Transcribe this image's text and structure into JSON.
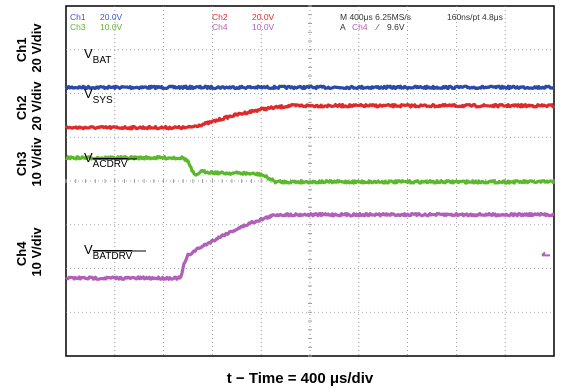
{
  "chart_data": {
    "type": "line",
    "x_axis_label": "t − Time = 400 μs/div",
    "header": {
      "channels": [
        {
          "name": "Ch1",
          "scale": "20.0V",
          "color": "#3a57c9"
        },
        {
          "name": "Ch2",
          "scale": "20.0V",
          "color": "#e02a2a"
        },
        {
          "name": "Ch3",
          "scale": "10.0V",
          "color": "#5ab82a"
        },
        {
          "name": "Ch4",
          "scale": "10.0V",
          "color": "#b060b8"
        }
      ],
      "timebase": "M 400μs  6.25MS/s",
      "record": "160ns/pt 4.8μs",
      "trigger_prefix": "A",
      "trigger_channel": "Ch4",
      "trigger_slope": "∕",
      "trigger_level": "9.6V"
    },
    "divisions": {
      "x": 10,
      "y": 8
    },
    "y_axis_labels": [
      {
        "channel": "Ch1",
        "scale": "20 V/div"
      },
      {
        "channel": "Ch2",
        "scale": "20 V/div"
      },
      {
        "channel": "Ch3",
        "scale": "10 V/div"
      },
      {
        "channel": "Ch4",
        "scale": "10 V/div"
      }
    ],
    "series": [
      {
        "name": "V_BAT",
        "label_main": "V",
        "label_sub": "BAT",
        "overline": false,
        "color": "#2b4aa8",
        "x": [
          0,
          10
        ],
        "y": [
          6.14,
          6.14
        ]
      },
      {
        "name": "V_SYS",
        "label_main": "V",
        "label_sub": "SYS",
        "overline": false,
        "color": "#e02a2a",
        "x": [
          0,
          2.5,
          2.9,
          3.4,
          4.0,
          4.6,
          5.5,
          10
        ],
        "y": [
          5.22,
          5.22,
          5.32,
          5.49,
          5.64,
          5.72,
          5.72,
          5.72
        ]
      },
      {
        "name": "V_ACDRV",
        "label_main": "V",
        "label_sub": "ACDRV",
        "overline": true,
        "color": "#5ab82a",
        "x": [
          0,
          2.4,
          2.5,
          2.58,
          2.66,
          2.75,
          3.2,
          3.6,
          4.0,
          4.3,
          10
        ],
        "y": [
          4.53,
          4.53,
          4.45,
          4.24,
          4.1,
          4.22,
          4.18,
          4.18,
          4.15,
          3.98,
          3.98
        ]
      },
      {
        "name": "V_BATDRV",
        "label_main": "V",
        "label_sub": "BATDRV",
        "overline": true,
        "color": "#b060b8",
        "x": [
          0,
          2.35,
          2.42,
          2.5,
          2.7,
          3.2,
          3.8,
          4.3,
          5.0,
          10
        ],
        "y": [
          1.78,
          1.78,
          2.1,
          2.3,
          2.45,
          2.75,
          3.05,
          3.23,
          3.23,
          3.23
        ]
      }
    ],
    "ground_markers": [
      {
        "channel": "Ch4",
        "y": 2.3
      }
    ]
  }
}
